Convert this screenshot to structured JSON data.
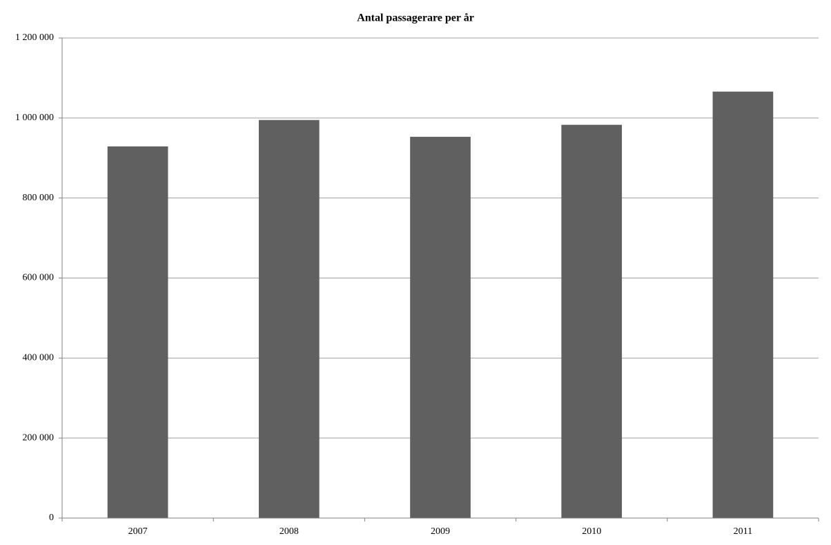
{
  "chart_data": {
    "type": "bar",
    "title": "Antal passagerare per år",
    "categories": [
      "2007",
      "2008",
      "2009",
      "2010",
      "2011"
    ],
    "values": [
      929000,
      995000,
      953000,
      983000,
      1066000
    ],
    "color": "#606060",
    "ylim": [
      0,
      1200000
    ],
    "yticks": [
      0,
      {
        "value": 200000,
        "label": "200 000"
      },
      {
        "value": 400000,
        "label": "400 000"
      },
      {
        "value": 600000,
        "label": "600 000"
      },
      {
        "value": 800000,
        "label": "800 000"
      },
      {
        "value": 1000000,
        "label": "1 000 000"
      },
      {
        "value": 1200000,
        "label": "1 200 000"
      }
    ],
    "grid": true
  }
}
